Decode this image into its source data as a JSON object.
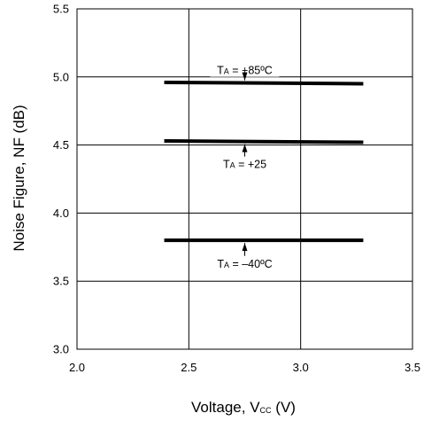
{
  "chart_data": {
    "type": "line",
    "title": "",
    "xlabel": "Voltage, V",
    "xlabel_sub": "CC",
    "xlabel_unit": "(V)",
    "ylabel": "Noise Figure, NF (dB)",
    "xlim": [
      2.0,
      3.5
    ],
    "ylim": [
      3.0,
      5.5
    ],
    "xticks": [
      "2.0",
      "2.5",
      "3.0",
      "3.5"
    ],
    "yticks": [
      "3.0",
      "3.5",
      "4.0",
      "4.5",
      "5.0",
      "5.5"
    ],
    "grid": true,
    "series": [
      {
        "name": "TA = +85ºC",
        "x": [
          2.39,
          3.28
        ],
        "y": [
          4.96,
          4.95
        ]
      },
      {
        "name": "TA = +25",
        "x": [
          2.39,
          3.28
        ],
        "y": [
          4.53,
          4.52
        ]
      },
      {
        "name": "TA = –40ºC",
        "x": [
          2.39,
          3.28
        ],
        "y": [
          3.8,
          3.8
        ]
      }
    ],
    "annotations": [
      {
        "main": "T",
        "sub": "A",
        "rest": " = +85ºC",
        "x": 2.75,
        "y": 5.04
      },
      {
        "main": "T",
        "sub": "A",
        "rest": " = +25",
        "x": 2.75,
        "y": 4.35
      },
      {
        "main": "T",
        "sub": "A",
        "rest": " = –40ºC",
        "x": 2.75,
        "y": 3.62
      }
    ]
  }
}
